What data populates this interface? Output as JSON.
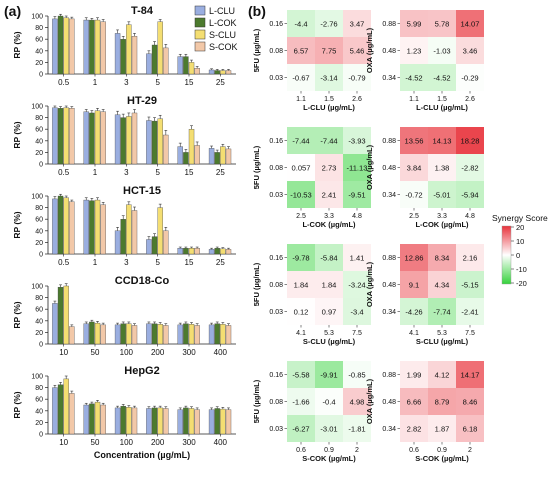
{
  "panel_labels": {
    "a": "(a)",
    "b": "(b)"
  },
  "legend": {
    "entries": [
      {
        "name": "L-CLU",
        "color": "#9aaee0"
      },
      {
        "name": "L-COK",
        "color": "#4c7a2e"
      },
      {
        "name": "S-CLU",
        "color": "#f4de72"
      },
      {
        "name": "S-COK",
        "color": "#f2c8a8"
      }
    ]
  },
  "colorbar": {
    "title": "Synergy Score",
    "ticks": [
      "20",
      "10",
      "0",
      "-10",
      "-20"
    ]
  },
  "chart_data": [
    {
      "id": "T84",
      "type": "bar",
      "title": "T-84",
      "ylabel": "RP (%)",
      "xlabel": "",
      "ylim": [
        0,
        100
      ],
      "yticks": [
        "0",
        "20",
        "40",
        "60",
        "80",
        "100"
      ],
      "categories": [
        "0.5",
        "1",
        "3",
        "5",
        "15",
        "25"
      ],
      "series": [
        {
          "name": "L-CLU",
          "values": [
            95,
            93,
            70,
            35,
            30,
            7
          ],
          "errors": [
            4,
            4,
            6,
            5,
            4,
            2
          ]
        },
        {
          "name": "L-COK",
          "values": [
            100,
            93,
            60,
            50,
            30,
            6
          ],
          "errors": [
            3,
            3,
            5,
            6,
            4,
            2
          ]
        },
        {
          "name": "S-CLU",
          "values": [
            97,
            93,
            85,
            90,
            20,
            6
          ],
          "errors": [
            3,
            4,
            5,
            4,
            4,
            2
          ]
        },
        {
          "name": "S-COK",
          "values": [
            95,
            90,
            65,
            45,
            10,
            6
          ],
          "errors": [
            3,
            4,
            5,
            6,
            3,
            2
          ]
        }
      ]
    },
    {
      "id": "HT29",
      "type": "bar",
      "title": "HT-29",
      "ylabel": "RP (%)",
      "xlabel": "",
      "ylim": [
        0,
        100
      ],
      "yticks": [
        "0",
        "20",
        "40",
        "60",
        "80",
        "100"
      ],
      "categories": [
        "0.5",
        "1",
        "3",
        "5",
        "15",
        "25"
      ],
      "series": [
        {
          "name": "L-CLU",
          "values": [
            97,
            90,
            85,
            75,
            30,
            27
          ],
          "errors": [
            3,
            4,
            6,
            6,
            6,
            4
          ]
        },
        {
          "name": "L-COK",
          "values": [
            96,
            88,
            80,
            74,
            20,
            20
          ],
          "errors": [
            3,
            4,
            6,
            6,
            5,
            4
          ]
        },
        {
          "name": "S-CLU",
          "values": [
            97,
            92,
            82,
            78,
            60,
            30
          ],
          "errors": [
            3,
            4,
            6,
            6,
            6,
            4
          ]
        },
        {
          "name": "S-COK",
          "values": [
            96,
            90,
            88,
            50,
            32,
            26
          ],
          "errors": [
            3,
            4,
            6,
            8,
            6,
            4
          ]
        }
      ]
    },
    {
      "id": "HCT15",
      "type": "bar",
      "title": "HCT-15",
      "ylabel": "RP (%)",
      "xlabel": "",
      "ylim": [
        0,
        100
      ],
      "yticks": [
        "0",
        "20",
        "40",
        "60",
        "80",
        "100"
      ],
      "categories": [
        "0.5",
        "1",
        "3",
        "5",
        "15",
        "25"
      ],
      "series": [
        {
          "name": "L-CLU",
          "values": [
            95,
            93,
            40,
            25,
            10,
            8
          ],
          "errors": [
            4,
            4,
            6,
            5,
            2,
            2
          ]
        },
        {
          "name": "L-COK",
          "values": [
            100,
            92,
            60,
            30,
            10,
            10
          ],
          "errors": [
            3,
            4,
            6,
            5,
            2,
            2
          ]
        },
        {
          "name": "S-CLU",
          "values": [
            97,
            93,
            85,
            80,
            10,
            9
          ],
          "errors": [
            3,
            4,
            5,
            6,
            2,
            2
          ]
        },
        {
          "name": "S-COK",
          "values": [
            90,
            85,
            75,
            40,
            10,
            8
          ],
          "errors": [
            3,
            4,
            6,
            6,
            2,
            2
          ]
        }
      ]
    },
    {
      "id": "CCD18",
      "type": "bar",
      "title": "CCD18-Co",
      "ylabel": "RP (%)",
      "xlabel": "",
      "ylim": [
        0,
        100
      ],
      "yticks": [
        "0",
        "20",
        "40",
        "60",
        "80",
        "100"
      ],
      "categories": [
        "10",
        "50",
        "100",
        "200",
        "300",
        "400"
      ],
      "series": [
        {
          "name": "L-CLU",
          "values": [
            70,
            35,
            33,
            35,
            33,
            33
          ],
          "errors": [
            4,
            3,
            3,
            3,
            3,
            3
          ]
        },
        {
          "name": "L-COK",
          "values": [
            98,
            38,
            35,
            35,
            35,
            35
          ],
          "errors": [
            4,
            3,
            3,
            3,
            3,
            3
          ]
        },
        {
          "name": "S-CLU",
          "values": [
            100,
            36,
            35,
            34,
            34,
            34
          ],
          "errors": [
            4,
            3,
            3,
            3,
            3,
            3
          ]
        },
        {
          "name": "S-COK",
          "values": [
            30,
            33,
            32,
            32,
            32,
            32
          ],
          "errors": [
            3,
            3,
            3,
            3,
            3,
            3
          ]
        }
      ]
    },
    {
      "id": "HepG2",
      "type": "bar",
      "title": "HepG2",
      "ylabel": "RP (%)",
      "xlabel": "Concentration (µg/mL)",
      "ylim": [
        0,
        100
      ],
      "yticks": [
        "0",
        "20",
        "40",
        "60",
        "80",
        "100"
      ],
      "categories": [
        "10",
        "50",
        "100",
        "200",
        "300",
        "400"
      ],
      "series": [
        {
          "name": "L-CLU",
          "values": [
            80,
            50,
            45,
            44,
            42,
            42
          ],
          "errors": [
            4,
            3,
            3,
            3,
            3,
            3
          ]
        },
        {
          "name": "L-COK",
          "values": [
            85,
            52,
            48,
            45,
            45,
            44
          ],
          "errors": [
            4,
            3,
            3,
            3,
            3,
            3
          ]
        },
        {
          "name": "S-CLU",
          "values": [
            95,
            55,
            46,
            45,
            44,
            43
          ],
          "errors": [
            5,
            3,
            3,
            3,
            3,
            3
          ]
        },
        {
          "name": "S-COK",
          "values": [
            70,
            50,
            45,
            44,
            42,
            42
          ],
          "errors": [
            4,
            3,
            3,
            3,
            3,
            3
          ]
        }
      ]
    },
    {
      "id": "H1",
      "type": "heatmap",
      "xlabel": "L-CLU (µg/mL)",
      "ylabel": "5FU (µg/mL)",
      "x": [
        "1.1",
        "1.5",
        "2.6"
      ],
      "y": [
        "0.16",
        "0.08",
        "0.03"
      ],
      "values": [
        [
          -4.4,
          -2.76,
          3.47
        ],
        [
          6.57,
          7.75,
          5.46
        ],
        [
          -0.67,
          -3.14,
          -0.79
        ]
      ]
    },
    {
      "id": "H2",
      "type": "heatmap",
      "xlabel": "L-CLU (µg/mL)",
      "ylabel": "OXA (µg/mL)",
      "x": [
        "1.1",
        "1.5",
        "2.6"
      ],
      "y": [
        "0.88",
        "0.48",
        "0.34"
      ],
      "values": [
        [
          5.99,
          5.78,
          14.07
        ],
        [
          1.23,
          -1.03,
          3.46
        ],
        [
          -4.52,
          -4.52,
          -0.29
        ]
      ]
    },
    {
      "id": "H3",
      "type": "heatmap",
      "xlabel": "L-COK (µg/mL)",
      "ylabel": "5FU (µg/mL)",
      "x": [
        "2.5",
        "3.3",
        "4.8"
      ],
      "y": [
        "0.16",
        "0.08",
        "0.03"
      ],
      "values": [
        [
          -7.44,
          -7.44,
          -3.93
        ],
        [
          0.057,
          2.73,
          -11.13
        ],
        [
          -10.53,
          2.41,
          -9.51
        ]
      ]
    },
    {
      "id": "H4",
      "type": "heatmap",
      "xlabel": "L-COK (µg/mL)",
      "ylabel": "OXA (µg/mL)",
      "x": [
        "2.5",
        "3.3",
        "4.8"
      ],
      "y": [
        "0.88",
        "0.48",
        "0.34"
      ],
      "values": [
        [
          13.56,
          14.13,
          18.28
        ],
        [
          3.84,
          1.38,
          -2.82
        ],
        [
          -0.72,
          -5.01,
          -5.94
        ]
      ]
    },
    {
      "id": "H5",
      "type": "heatmap",
      "xlabel": "S-CLU (µg/mL)",
      "ylabel": "5FU (µg/mL)",
      "x": [
        "4.1",
        "5.3",
        "7.5"
      ],
      "y": [
        "0.16",
        "0.08",
        "0.03"
      ],
      "values": [
        [
          -9.78,
          -5.84,
          1.41
        ],
        [
          1.84,
          1.84,
          -3.24
        ],
        [
          0.12,
          0.97,
          -3.4
        ]
      ]
    },
    {
      "id": "H6",
      "type": "heatmap",
      "xlabel": "S-CLU (µg/mL)",
      "ylabel": "OXA (µg/mL)",
      "x": [
        "4.1",
        "5.3",
        "7.5"
      ],
      "y": [
        "0.88",
        "0.48",
        "0.34"
      ],
      "values": [
        [
          12.86,
          8.34,
          2.16
        ],
        [
          9.1,
          4.34,
          -5.15
        ],
        [
          -4.26,
          -7.74,
          -2.41
        ]
      ]
    },
    {
      "id": "H7",
      "type": "heatmap",
      "xlabel": "S-COK (µg/mL)",
      "ylabel": "5FU (µg/mL)",
      "x": [
        "0.6",
        "0.9",
        "2"
      ],
      "y": [
        "0.16",
        "0.08",
        "0.03"
      ],
      "values": [
        [
          -5.58,
          -9.91,
          -0.85
        ],
        [
          -1.66,
          -0.4,
          4.98
        ],
        [
          -6.27,
          -3.01,
          -1.81
        ]
      ]
    },
    {
      "id": "H8",
      "type": "heatmap",
      "xlabel": "S-COK (µg/mL)",
      "ylabel": "OXA (µg/mL)",
      "x": [
        "0.6",
        "0.9",
        "2"
      ],
      "y": [
        "0.88",
        "0.48",
        "0.34"
      ],
      "values": [
        [
          1.99,
          4.12,
          14.17
        ],
        [
          6.66,
          8.79,
          8.46
        ],
        [
          2.82,
          1.87,
          6.18
        ]
      ]
    }
  ]
}
